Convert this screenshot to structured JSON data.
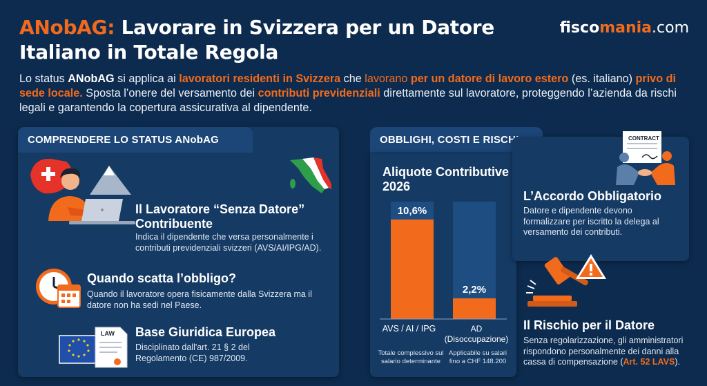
{
  "header": {
    "title_accent": "ANobAG:",
    "title_rest": " Lavorare in Svizzera per un Datore Italiano in Totale Regola",
    "brand_left": "fisco",
    "brand_mid": "mania",
    "brand_right": ".com"
  },
  "intro": {
    "s1": "Lo status ",
    "s2": "ANobAG",
    "s3": " si applica ai ",
    "s4": "lavoratori residenti in Svizzera",
    "s5": " che ",
    "s6": "lavorano",
    "s7": " ",
    "s8": "per un datore di lavoro estero",
    "s9": " (es. italiano) ",
    "s10": "privo di sede locale.",
    "s11": " Sposta l’onere del versamento dei ",
    "s12": "contributi previdenziali",
    "s13": " direttamente sul lavoratore, proteggendo l’azienda da rischi legali e garantendo la copertura assicurativa al dipendente."
  },
  "left_panel": {
    "tab": "COMPRENDERE LO STATUS ANobAG",
    "item1_title": "Il Lavoratore “Senza Datore” Contribuente",
    "item1_text": "Indica il dipendente che versa personalmente i contributi previdenziali svizzeri (AVS/AI/IPG/AD).",
    "item2_title": "Quando scatta l’obbligo?",
    "item2_text": "Quando il lavoratore opera fisicamente dalla Svizzera ma il datore non ha sedi nel Paese.",
    "item3_title": "Base Giuridica Europea",
    "item3_text": "Disciplinato dall'art. 21 § 2 del Regolamento (CE) 987/2009.",
    "law_label": "LAW"
  },
  "right_panel": {
    "tab": "OBBLIGHI, COSTI E RISCHI",
    "chart_title": "Aliquote Contributive 2026",
    "agreement_title": "L’Accordo Obbligatorio",
    "agreement_text": "Datore e dipendente devono formalizzare per iscritto la delega al versamento dei contributi.",
    "contract_label": "CONTRACT",
    "risk_title": "Il Rischio per il Datore",
    "risk_text": "Senza regolarizzazione, gli amministratori rispondono personalmente dei danni alla cassa di compensazione (",
    "risk_ref": "Art. 52 LAVS",
    "risk_end": ")."
  },
  "chart_data": {
    "type": "bar",
    "title": "Aliquote Contributive 2026",
    "categories": [
      "AVS / AI / IPG",
      "AD (Disoccupazione)"
    ],
    "values": [
      10.6,
      2.2
    ],
    "value_labels": [
      "10,6%",
      "2,2%"
    ],
    "notes": [
      "Totale complessivo sul salario determinante",
      "Applicabile su salari fino a CHF 148.200"
    ],
    "unit": "%",
    "ylim": [
      0,
      12.5
    ],
    "grid": false,
    "colors": {
      "bar": "#f26b1d",
      "track": "#1e4d82"
    }
  },
  "colors": {
    "background": "#0d2b4e",
    "panel": "#153a64",
    "accent": "#f26b1d"
  }
}
